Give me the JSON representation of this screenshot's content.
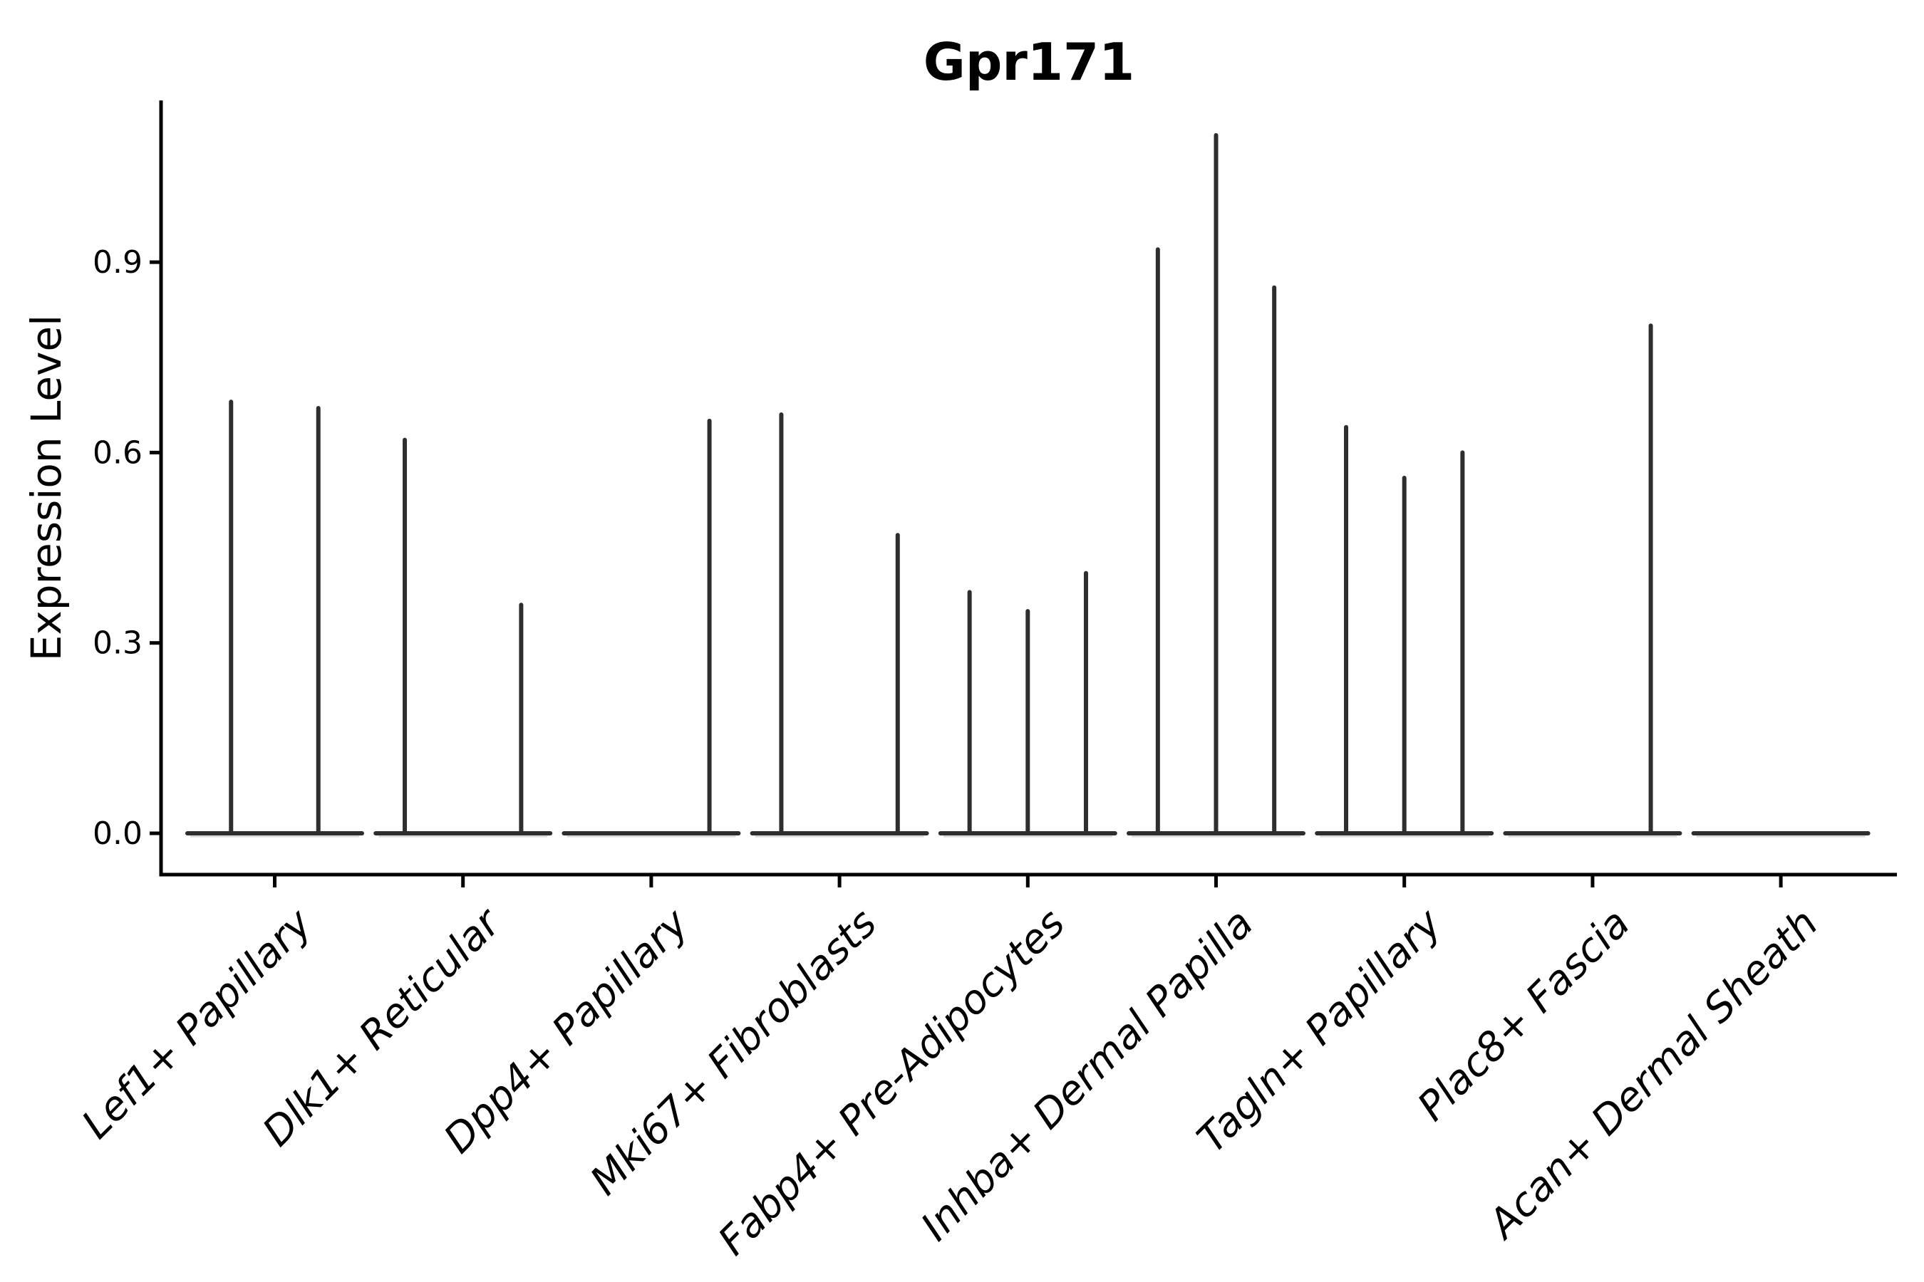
{
  "chart_data": {
    "type": "violin",
    "title": "Gpr171",
    "xlabel": "",
    "ylabel": "Expression Level",
    "yticks": [
      0.0,
      0.3,
      0.6,
      0.9
    ],
    "ylim": [
      -0.065,
      1.155
    ],
    "grid": false,
    "legend": "none",
    "description": "Needle-style violin plot of Gpr171 expression per fibroblast cluster; each cluster contains 2-3 sample violins whose bases are flattened at 0 and whose maxima are listed in violin_maxima (0 = flat violin, no expressing cells).",
    "categories": [
      "Lef1+ Papillary",
      "Dlk1+ Reticular",
      "Dpp4+ Papillary",
      "Mki67+ Fibroblasts",
      "Fabp4+ Pre-Adipocytes",
      "Inhba+ Dermal Papilla",
      "Tagln+ Papillary",
      "Plac8+ Fascia",
      "Acan+ Dermal Sheath"
    ],
    "series": [
      {
        "name": "Lef1+ Papillary",
        "violin_maxima": [
          0.68,
          0.67
        ]
      },
      {
        "name": "Dlk1+ Reticular",
        "violin_maxima": [
          0.62,
          0.0,
          0.36
        ]
      },
      {
        "name": "Dpp4+ Papillary",
        "violin_maxima": [
          0.0,
          0.0,
          0.65
        ]
      },
      {
        "name": "Mki67+ Fibroblasts",
        "violin_maxima": [
          0.66,
          0.0,
          0.47
        ]
      },
      {
        "name": "Fabp4+ Pre-Adipocytes",
        "violin_maxima": [
          0.38,
          0.35,
          0.41
        ]
      },
      {
        "name": "Inhba+ Dermal Papilla",
        "violin_maxima": [
          0.92,
          1.1,
          0.86
        ]
      },
      {
        "name": "Tagln+ Papillary",
        "violin_maxima": [
          0.64,
          0.56,
          0.6
        ]
      },
      {
        "name": "Plac8+ Fascia",
        "violin_maxima": [
          0.0,
          0.0,
          0.8
        ]
      },
      {
        "name": "Acan+ Dermal Sheath",
        "violin_maxima": [
          0.0,
          0.0,
          0.0
        ]
      }
    ],
    "colors": {
      "violin_line": "#2e2e2e",
      "violin_base_shadow": "#aaaaaa",
      "axis": "#000000",
      "text": "#000000",
      "background": "#ffffff"
    }
  }
}
